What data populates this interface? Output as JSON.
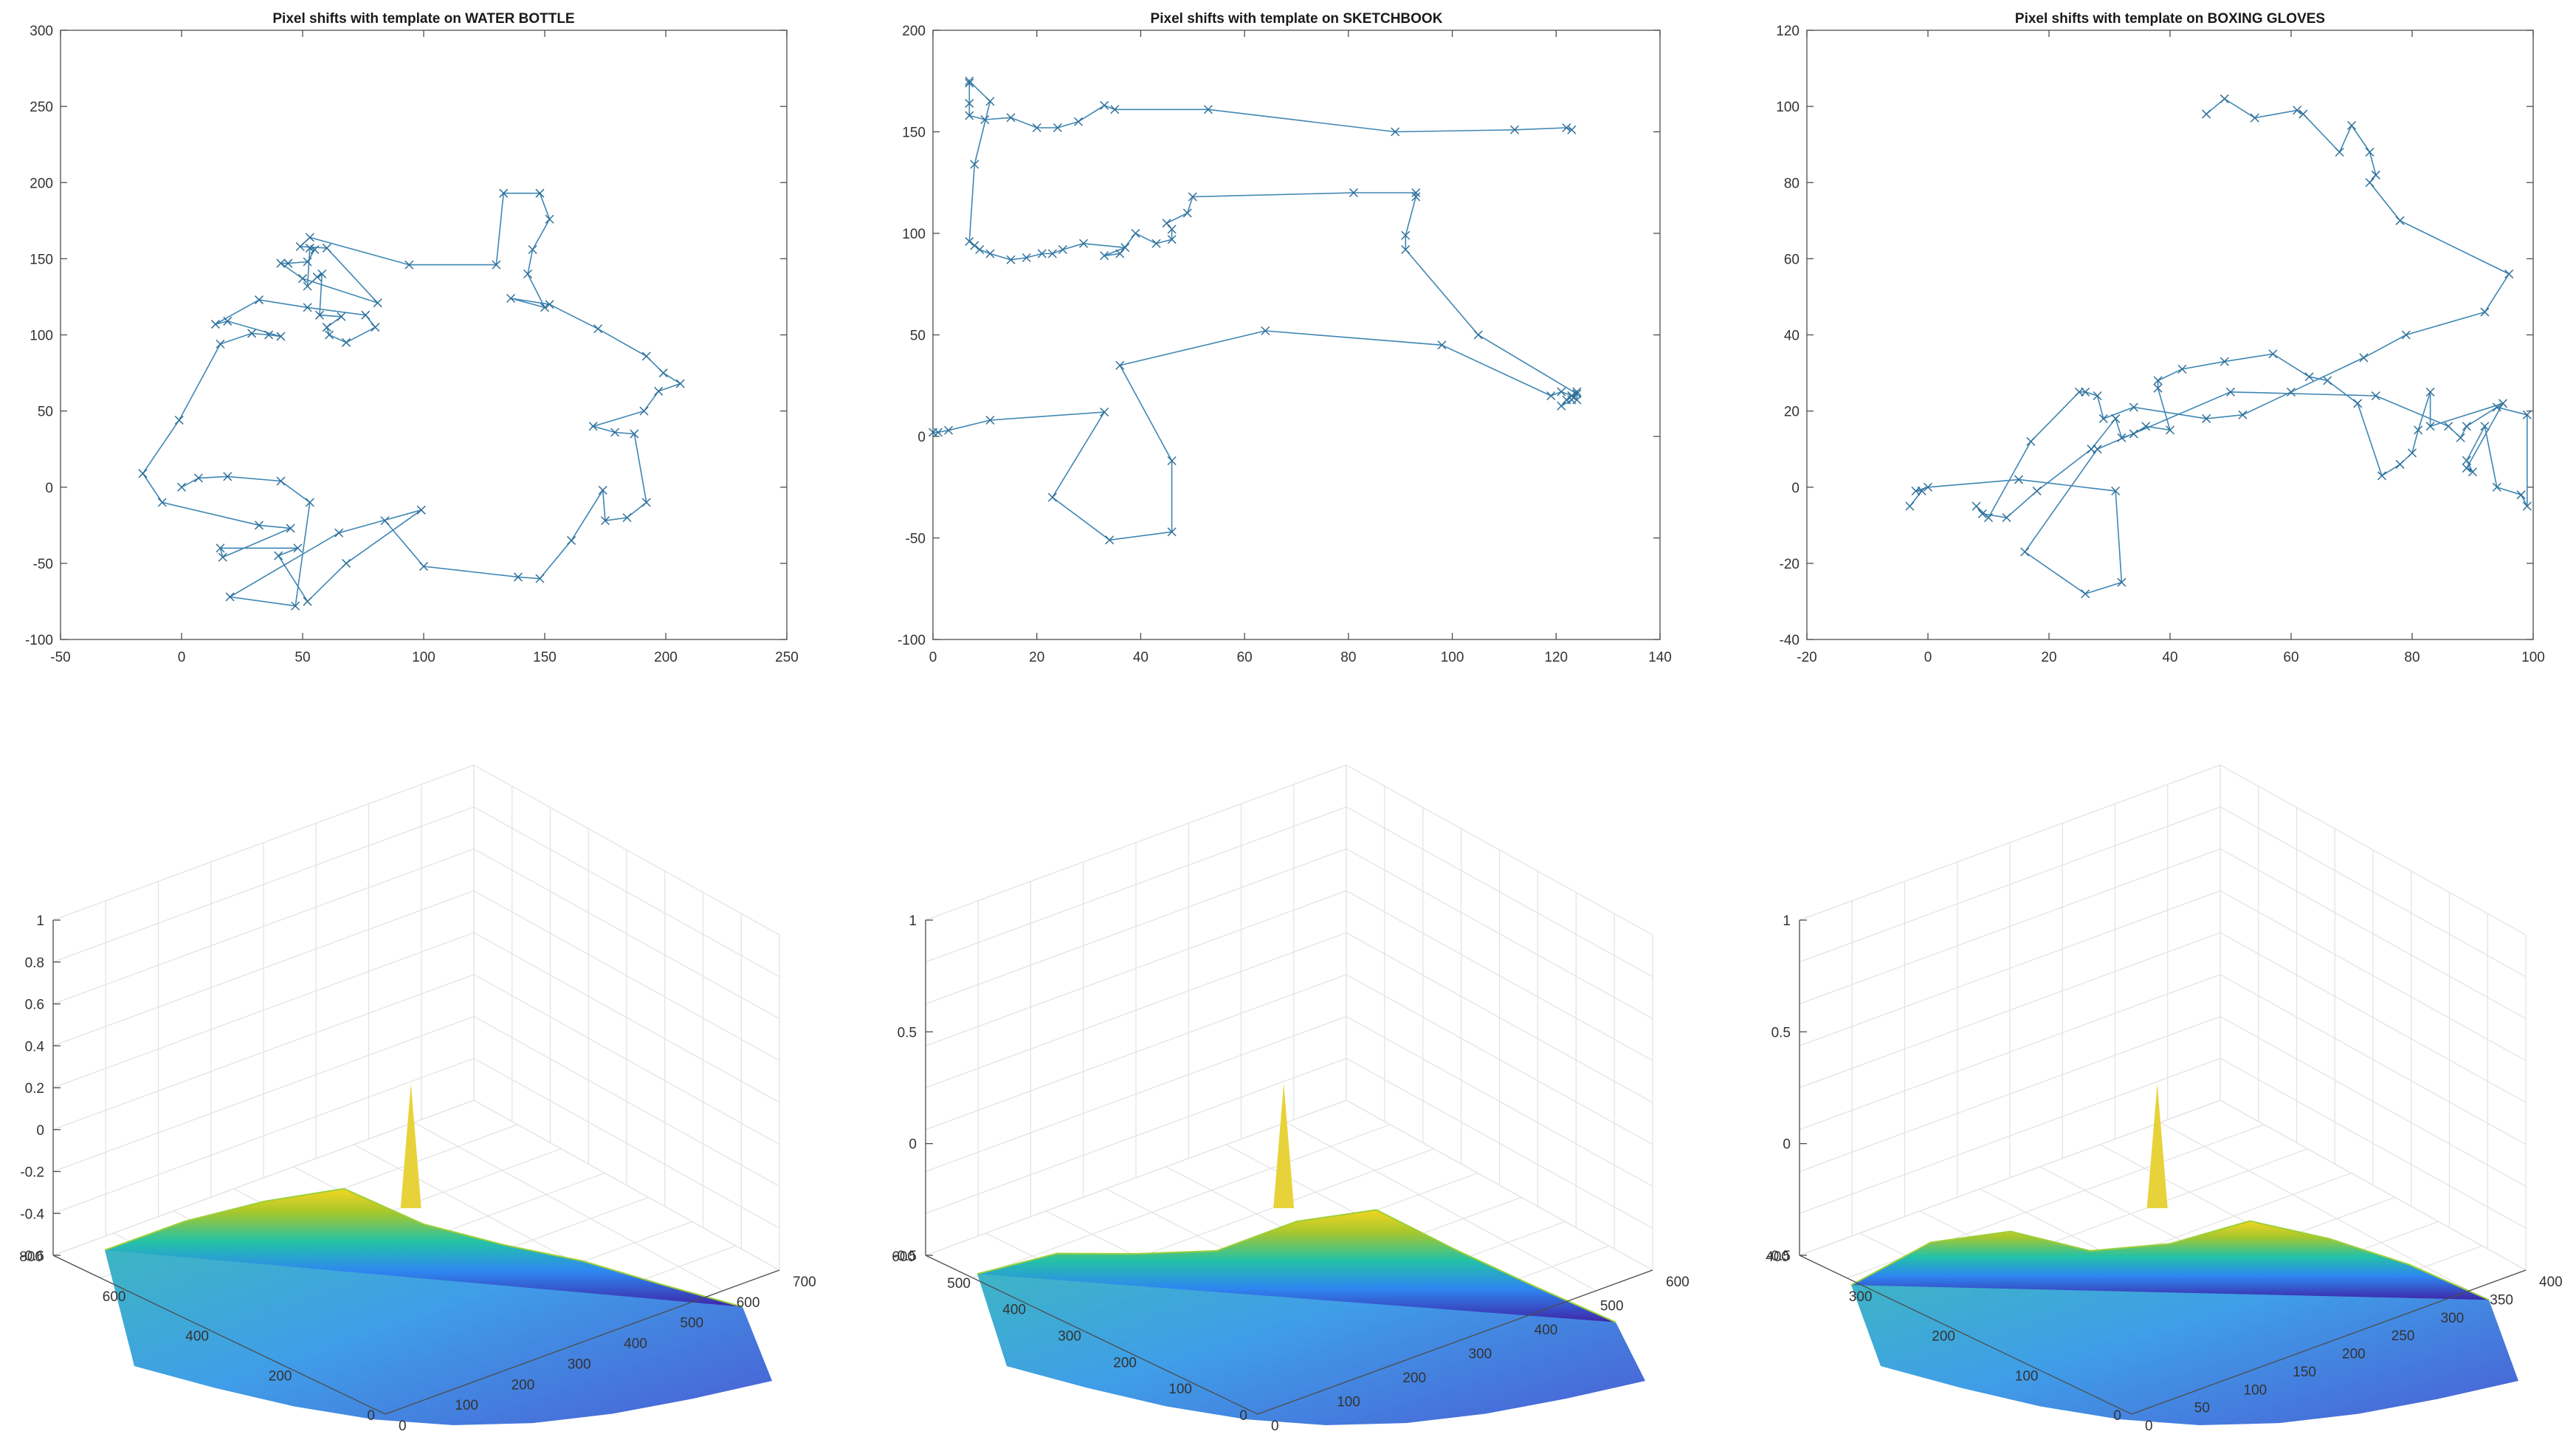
{
  "chart_data": [
    {
      "type": "line",
      "marker": "x",
      "title": "Pixel shifts with template on WATER BOTTLE",
      "xlabel": "",
      "ylabel": "",
      "xlim": [
        -50,
        250
      ],
      "ylim": [
        -100,
        300
      ],
      "xticks": [
        -50,
        0,
        50,
        100,
        150,
        200,
        250
      ],
      "yticks": [
        -100,
        -50,
        0,
        50,
        100,
        150,
        200,
        250,
        300
      ],
      "color": "#3f86b3",
      "series": [
        {
          "x": [
            0,
            7,
            19,
            41,
            53,
            47,
            20,
            65,
            99,
            68,
            52,
            40,
            48,
            16,
            17,
            45,
            32,
            -8,
            -16,
            -1,
            16,
            29,
            36,
            41,
            19,
            14,
            32,
            52,
            76,
            80,
            68,
            61,
            60,
            66,
            57,
            58,
            56,
            52,
            53,
            55,
            52,
            44,
            41,
            50,
            81,
            60,
            49,
            53,
            94,
            130,
            133,
            148,
            152,
            145,
            143,
            150,
            136,
            152,
            172,
            192,
            199,
            206,
            197,
            191,
            170,
            179,
            187,
            192,
            184,
            175,
            174,
            161,
            148,
            139,
            100,
            84
          ],
          "y": [
            0,
            6,
            7,
            4,
            -10,
            -78,
            -72,
            -30,
            -15,
            -50,
            -75,
            -45,
            -40,
            -40,
            -46,
            -27,
            -25,
            -10,
            9,
            44,
            94,
            101,
            100,
            99,
            109,
            107,
            123,
            118,
            113,
            105,
            95,
            100,
            105,
            112,
            113,
            140,
            138,
            132,
            157,
            156,
            148,
            147,
            147,
            137,
            121,
            157,
            158,
            164,
            146,
            146,
            193,
            193,
            176,
            156,
            140,
            118,
            124,
            120,
            104,
            86,
            75,
            68,
            63,
            50,
            40,
            36,
            35,
            -10,
            -20,
            -22,
            -2,
            -35,
            -60,
            -59,
            -52,
            -22
          ]
        }
      ]
    },
    {
      "type": "line",
      "marker": "x",
      "title": "Pixel shifts with template on SKETCHBOOK",
      "xlabel": "",
      "ylabel": "",
      "xlim": [
        0,
        140
      ],
      "ylim": [
        -100,
        200
      ],
      "xticks": [
        0,
        20,
        40,
        60,
        80,
        100,
        120,
        140
      ],
      "yticks": [
        -100,
        -50,
        0,
        50,
        100,
        150,
        200
      ],
      "color": "#3f86b3",
      "series": [
        {
          "x": [
            0,
            1,
            3,
            11,
            33,
            23,
            34,
            46,
            46,
            36,
            64,
            98,
            119,
            121,
            123,
            124,
            124,
            123,
            121,
            122,
            123,
            124,
            105,
            91,
            91,
            93,
            93,
            81,
            50,
            49,
            45,
            46,
            46,
            43,
            39,
            36,
            33,
            37,
            29,
            25,
            23,
            21,
            18,
            15,
            11,
            9,
            8,
            7,
            8,
            11,
            7,
            7,
            7,
            7,
            10,
            15,
            20,
            24,
            28,
            33,
            35,
            53,
            89,
            112,
            122,
            123
          ],
          "y": [
            2,
            2,
            3,
            8,
            12,
            -30,
            -51,
            -47,
            -12,
            35,
            52,
            45,
            20,
            22,
            20,
            18,
            22,
            18,
            15,
            18,
            20,
            21,
            50,
            92,
            99,
            118,
            120,
            120,
            118,
            110,
            105,
            102,
            97,
            95,
            100,
            90,
            89,
            93,
            95,
            92,
            90,
            90,
            88,
            87,
            90,
            92,
            94,
            96,
            134,
            165,
            175,
            174,
            164,
            158,
            156,
            157,
            152,
            152,
            155,
            163,
            161,
            161,
            150,
            151,
            152,
            151
          ]
        }
      ]
    },
    {
      "type": "line",
      "marker": "x",
      "title": "Pixel shifts with template on BOXING GLOVES",
      "xlabel": "",
      "ylabel": "",
      "xlim": [
        -20,
        100
      ],
      "ylim": [
        -40,
        120
      ],
      "xticks": [
        -20,
        0,
        20,
        40,
        60,
        80,
        100
      ],
      "yticks": [
        -40,
        -20,
        0,
        20,
        40,
        60,
        80,
        100,
        120
      ],
      "color": "#3f86b3",
      "series": [
        {
          "x": [
            -3,
            -1,
            -2,
            0,
            15,
            31,
            32,
            26,
            16,
            28,
            50,
            74,
            86,
            88,
            89,
            94,
            99,
            99,
            98,
            94,
            92,
            89,
            90,
            89,
            95,
            83,
            83,
            81,
            80,
            78,
            75,
            71,
            66,
            63,
            57,
            49,
            42,
            38,
            38,
            40,
            36,
            34,
            32,
            31,
            27,
            18,
            13,
            9,
            8,
            10,
            17,
            25,
            26,
            28,
            29,
            34,
            46,
            52,
            60,
            72,
            79,
            92,
            96,
            78,
            73,
            74,
            73,
            70,
            68,
            62,
            61,
            54,
            49,
            46
          ],
          "y": [
            -5,
            -1,
            -1,
            0,
            2,
            -1,
            -25,
            -28,
            -17,
            10,
            25,
            24,
            16,
            13,
            16,
            21,
            19,
            -5,
            -2,
            0,
            16,
            7,
            4,
            5,
            22,
            16,
            25,
            15,
            9,
            6,
            3,
            22,
            28,
            29,
            35,
            33,
            31,
            28,
            26,
            15,
            16,
            14,
            13,
            18,
            10,
            -1,
            -8,
            -7,
            -5,
            -8,
            12,
            25,
            25,
            24,
            18,
            21,
            18,
            19,
            25,
            34,
            40,
            46,
            56,
            70,
            80,
            82,
            88,
            95,
            88,
            98,
            99,
            97,
            102,
            98
          ]
        }
      ]
    },
    {
      "type": "area",
      "title": "",
      "xlabel": "",
      "ylabel": "",
      "xlim": [
        0,
        700
      ],
      "ylim": [
        0,
        800
      ],
      "zlim": [
        -0.6,
        1
      ],
      "xticks": [
        0,
        100,
        200,
        300,
        400,
        500,
        600,
        700
      ],
      "yticks": [
        0,
        200,
        400,
        600,
        800
      ],
      "zticks": [
        -0.6,
        -0.4,
        -0.2,
        0,
        0.2,
        0.4,
        0.6,
        0.8,
        1
      ],
      "colormap": [
        "#3e26a8",
        "#2e87f1",
        "#23c2a7",
        "#a6c72c",
        "#f4d521"
      ],
      "peak_z": 1,
      "series": [
        {
          "name": "",
          "values": [
            0.1,
            0.3,
            0.45,
            0.55,
            0.4,
            0.3,
            0.2,
            0.05,
            -0.1
          ]
        },
        {
          "name": "",
          "values": [
            -0.3,
            -0.5,
            -0.55,
            -0.45,
            -0.5,
            -0.3,
            -0.4,
            -0.2
          ]
        }
      ]
    },
    {
      "type": "area",
      "title": "",
      "xlabel": "",
      "ylabel": "",
      "xlim": [
        0,
        600
      ],
      "ylim": [
        0,
        600
      ],
      "zlim": [
        -0.5,
        1
      ],
      "xticks": [
        0,
        100,
        200,
        300,
        400,
        500,
        600
      ],
      "yticks": [
        0,
        100,
        200,
        300,
        400,
        500,
        600
      ],
      "zticks": [
        -0.5,
        0,
        0.5,
        1
      ],
      "colormap": [
        "#3e26a8",
        "#2e87f1",
        "#23c2a7",
        "#a6c72c",
        "#f4d521"
      ],
      "peak_z": 1,
      "series": [
        {
          "name": "",
          "values": [
            0.05,
            0.2,
            0.25,
            0.3,
            0.45,
            0.5,
            0.3,
            0.1,
            -0.1
          ]
        }
      ]
    },
    {
      "type": "area",
      "title": "",
      "xlabel": "",
      "ylabel": "",
      "xlim": [
        0,
        400
      ],
      "ylim": [
        0,
        400
      ],
      "zlim": [
        -0.5,
        1
      ],
      "xticks": [
        0,
        50,
        100,
        150,
        200,
        250,
        300,
        350,
        400
      ],
      "yticks": [
        0,
        100,
        200,
        300,
        400
      ],
      "zticks": [
        -0.5,
        0,
        0.5,
        1
      ],
      "colormap": [
        "#3e26a8",
        "#2e87f1",
        "#23c2a7",
        "#a6c72c",
        "#f4d521"
      ],
      "peak_z": 1,
      "series": [
        {
          "name": "",
          "values": [
            0.0,
            0.25,
            0.35,
            0.3,
            0.35,
            0.45,
            0.35,
            0.2,
            0.0
          ]
        }
      ]
    }
  ]
}
